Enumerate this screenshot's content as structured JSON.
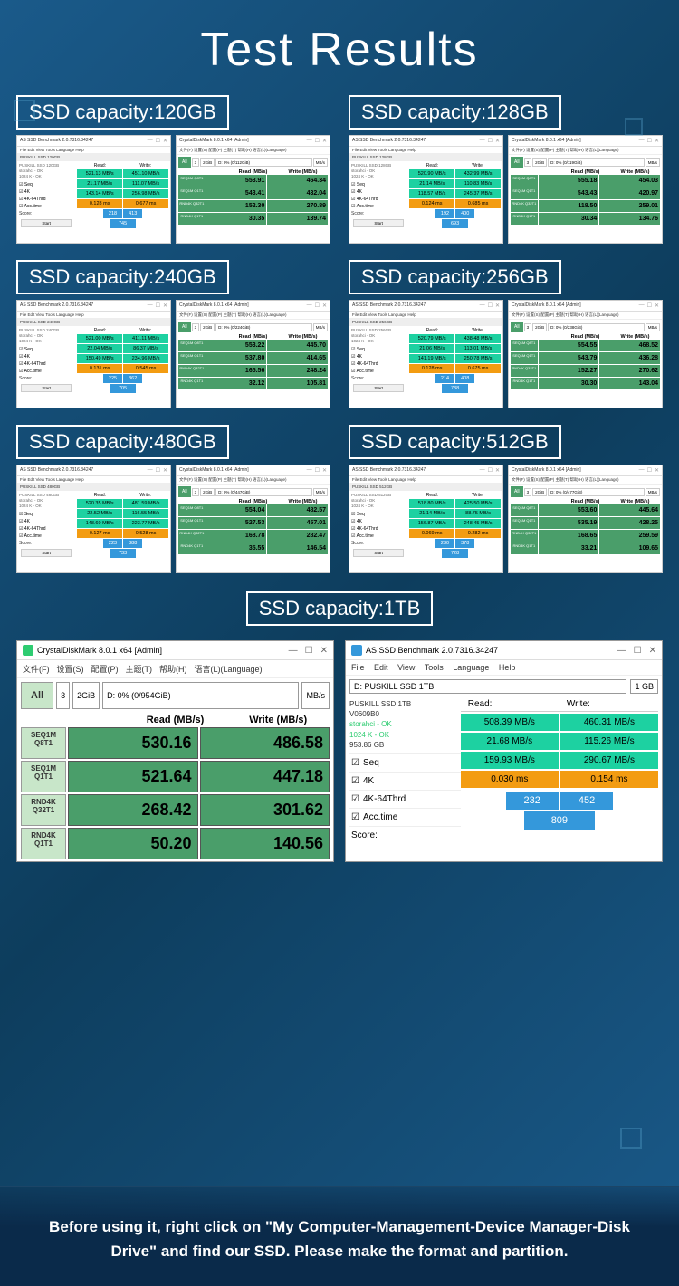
{
  "title": "Test Results",
  "footer": "Before using it, right click on \"My Computer-Management-Device Manager-Disk Drive\" and find our SSD. Please make the format and partition.",
  "colors": {
    "bg_gradient": [
      "#1a5a8a",
      "#0d3d5d"
    ],
    "cell_green": "#1dd1a1",
    "cell_orange": "#f39c12",
    "cell_blue": "#3498db",
    "cdm_green": "#4a9e6a",
    "cdm_light": "#c8e6c9"
  },
  "capacities": [
    {
      "label": "SSD capacity:120GB",
      "as": {
        "title": "AS SSD Benchmark 2.0.7316.34247",
        "info": "PUSKILL SSD 120GB",
        "read_header": "Read:",
        "write_header": "Write:",
        "seq": [
          "521.13 MB/s",
          "451.10 MB/s"
        ],
        "k4": [
          "21.17 MB/s",
          "111.07 MB/s"
        ],
        "k64": [
          "143.14 MB/s",
          "256.98 MB/s"
        ],
        "acc": [
          "0.128 ms",
          "0.677 ms"
        ],
        "scores": [
          "218",
          "413"
        ],
        "total": "745"
      },
      "cdm": {
        "title": "CrystalDiskMark 8.0.1 x64 [Admin]",
        "drive": "D: 0% (0/112GiB)",
        "rows": [
          [
            "SEQ1M Q8T1",
            "553.91",
            "464.34"
          ],
          [
            "SEQ1M Q1T1",
            "543.41",
            "432.04"
          ],
          [
            "RND4K Q32T1",
            "152.30",
            "270.89"
          ],
          [
            "RND4K Q1T1",
            "30.35",
            "139.74"
          ]
        ]
      }
    },
    {
      "label": "SSD capacity:128GB",
      "as": {
        "title": "AS SSD Benchmark 2.0.7316.34247",
        "info": "PUSKILL SSD 128GB",
        "read_header": "Read:",
        "write_header": "Write:",
        "seq": [
          "520.90 MB/s",
          "432.99 MB/s"
        ],
        "k4": [
          "21.14 MB/s",
          "110.83 MB/s"
        ],
        "k64": [
          "118.57 MB/s",
          "245.37 MB/s"
        ],
        "acc": [
          "0.124 ms",
          "0.685 ms"
        ],
        "scores": [
          "192",
          "400"
        ],
        "total": "693"
      },
      "cdm": {
        "title": "CrystalDiskMark 8.0.1 x64 [Admin]",
        "drive": "D: 0% (0/119GiB)",
        "rows": [
          [
            "SEQ1M Q8T1",
            "555.18",
            "454.03"
          ],
          [
            "SEQ1M Q1T1",
            "543.43",
            "420.97"
          ],
          [
            "RND4K Q32T1",
            "118.50",
            "259.01"
          ],
          [
            "RND4K Q1T1",
            "30.34",
            "134.76"
          ]
        ]
      }
    },
    {
      "label": "SSD capacity:240GB",
      "as": {
        "title": "AS SSD Benchmark 2.0.7316.34247",
        "info": "PUSKILL SSD 240GB",
        "read_header": "Read:",
        "write_header": "Write:",
        "seq": [
          "521.00 MB/s",
          "411.11 MB/s"
        ],
        "k4": [
          "22.04 MB/s",
          "86.37 MB/s"
        ],
        "k64": [
          "150.49 MB/s",
          "234.96 MB/s"
        ],
        "acc": [
          "0.131 ms",
          "0.545 ms"
        ],
        "scores": [
          "225",
          "362"
        ],
        "total": "705"
      },
      "cdm": {
        "title": "CrystalDiskMark 8.0.1 x64 [Admin]",
        "drive": "D: 0% (0/224GiB)",
        "rows": [
          [
            "SEQ1M Q8T1",
            "553.22",
            "445.70"
          ],
          [
            "SEQ1M Q1T1",
            "537.80",
            "414.65"
          ],
          [
            "RND4K Q32T1",
            "165.56",
            "248.24"
          ],
          [
            "RND4K Q1T1",
            "32.12",
            "105.81"
          ]
        ]
      }
    },
    {
      "label": "SSD capacity:256GB",
      "as": {
        "title": "AS SSD Benchmark 2.0.7316.34247",
        "info": "PUSKILL SSD 256GB",
        "read_header": "Read:",
        "write_header": "Write:",
        "seq": [
          "520.79 MB/s",
          "438.48 MB/s"
        ],
        "k4": [
          "21.06 MB/s",
          "113.01 MB/s"
        ],
        "k64": [
          "141.19 MB/s",
          "250.78 MB/s"
        ],
        "acc": [
          "0.128 ms",
          "0.675 ms"
        ],
        "scores": [
          "214",
          "408"
        ],
        "total": "738"
      },
      "cdm": {
        "title": "CrystalDiskMark 8.0.1 x64 [Admin]",
        "drive": "D: 0% (0/238GiB)",
        "rows": [
          [
            "SEQ1M Q8T1",
            "554.55",
            "468.52"
          ],
          [
            "SEQ1M Q1T1",
            "543.79",
            "436.28"
          ],
          [
            "RND4K Q32T1",
            "152.27",
            "270.62"
          ],
          [
            "RND4K Q1T1",
            "30.30",
            "143.04"
          ]
        ]
      }
    },
    {
      "label": "SSD capacity:480GB",
      "as": {
        "title": "AS SSD Benchmark 2.0.7316.34247",
        "info": "PUSKILL SSD 480GB",
        "read_header": "Read:",
        "write_header": "Write:",
        "seq": [
          "520.35 MB/s",
          "481.59 MB/s"
        ],
        "k4": [
          "22.52 MB/s",
          "116.55 MB/s"
        ],
        "k64": [
          "148.60 MB/s",
          "223.77 MB/s"
        ],
        "acc": [
          "0.127 ms",
          "0.528 ms"
        ],
        "scores": [
          "223",
          "388"
        ],
        "total": "733"
      },
      "cdm": {
        "title": "CrystalDiskMark 8.0.1 x64 [Admin]",
        "drive": "D: 0% (0/447GiB)",
        "rows": [
          [
            "SEQ1M Q8T1",
            "554.04",
            "482.57"
          ],
          [
            "SEQ1M Q1T1",
            "527.53",
            "457.01"
          ],
          [
            "RND4K Q32T1",
            "168.78",
            "282.47"
          ],
          [
            "RND4K Q1T1",
            "35.55",
            "146.54"
          ]
        ]
      }
    },
    {
      "label": "SSD capacity:512GB",
      "as": {
        "title": "AS SSD Benchmark 2.0.7316.34247",
        "info": "PUSKILL SSD 512GB",
        "read_header": "Read:",
        "write_header": "Write:",
        "seq": [
          "518.80 MB/s",
          "425.50 MB/s"
        ],
        "k4": [
          "21.14 MB/s",
          "88.75 MB/s"
        ],
        "k64": [
          "156.87 MB/s",
          "248.45 MB/s"
        ],
        "acc": [
          "0.069 ms",
          "0.282 ms"
        ],
        "scores": [
          "230",
          "378"
        ],
        "total": "728"
      },
      "cdm": {
        "title": "CrystalDiskMark 8.0.1 x64 [Admin]",
        "drive": "D: 0% (0/477GiB)",
        "rows": [
          [
            "SEQ1M Q8T1",
            "553.60",
            "445.64"
          ],
          [
            "SEQ1M Q1T1",
            "535.19",
            "428.25"
          ],
          [
            "RND4K Q32T1",
            "168.65",
            "259.59"
          ],
          [
            "RND4K Q1T1",
            "33.21",
            "109.65"
          ]
        ]
      }
    }
  ],
  "tb": {
    "label": "SSD capacity:1TB",
    "cdm": {
      "title": "CrystalDiskMark 8.0.1 x64 [Admin]",
      "menu": [
        "文件(F)",
        "设置(S)",
        "配置(P)",
        "主题(T)",
        "帮助(H)",
        "语言(L)(Language)"
      ],
      "all": "All",
      "selects": [
        "3",
        "2GiB",
        "D: 0% (0/954GiB)",
        "MB/s"
      ],
      "read_header": "Read (MB/s)",
      "write_header": "Write (MB/s)",
      "rows": [
        {
          "label": "SEQ1M Q8T1",
          "read": "530.16",
          "write": "486.58"
        },
        {
          "label": "SEQ1M Q1T1",
          "read": "521.64",
          "write": "447.18"
        },
        {
          "label": "RND4K Q32T1",
          "read": "268.42",
          "write": "301.62"
        },
        {
          "label": "RND4K Q1T1",
          "read": "50.20",
          "write": "140.56"
        }
      ]
    },
    "as": {
      "title": "AS SSD Benchmark 2.0.7316.34247",
      "menu": [
        "File",
        "Edit",
        "View",
        "Tools",
        "Language",
        "Help"
      ],
      "drive_sel": "D: PUSKILL SSD 1TB",
      "size_sel": "1 GB",
      "info": [
        "PUSKILL SSD 1TB",
        "V0609B0",
        "storahci - OK",
        "1024 K - OK",
        "953.86 GB"
      ],
      "read_header": "Read:",
      "write_header": "Write:",
      "rows": [
        {
          "label": "Seq",
          "read": "508.39 MB/s",
          "write": "460.31 MB/s"
        },
        {
          "label": "4K",
          "read": "21.68 MB/s",
          "write": "115.26 MB/s"
        },
        {
          "label": "4K-64Thrd",
          "read": "159.93 MB/s",
          "write": "290.67 MB/s"
        },
        {
          "label": "Acc.time",
          "read": "0.030 ms",
          "write": "0.154 ms",
          "orange": true
        }
      ],
      "score_label": "Score:",
      "scores": [
        "232",
        "452"
      ],
      "total": "809"
    }
  }
}
